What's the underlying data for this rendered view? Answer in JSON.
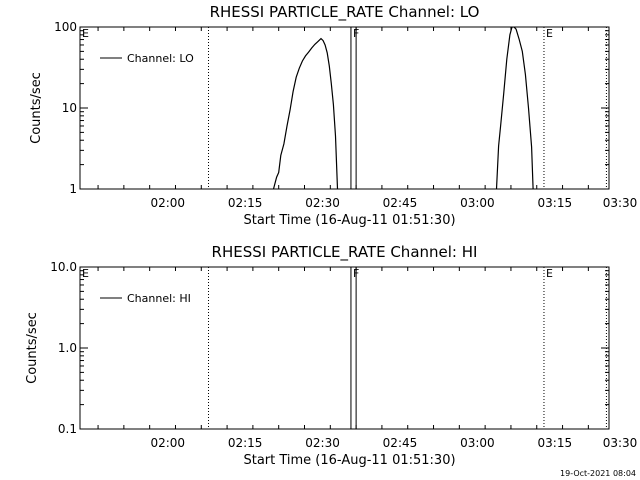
{
  "chart_data": [
    {
      "type": "line",
      "title": "RHESSI PARTICLE_RATE Channel: LO",
      "xlabel": "Start Time (16-Aug-11 01:51:30)",
      "ylabel": "Counts/sec",
      "yscale": "log",
      "ylim": [
        1,
        100
      ],
      "xlim_min": [
        -8.5,
        94
      ],
      "x_ticks": [
        {
          "min": 8.5,
          "label": "02:00"
        },
        {
          "min": 23.5,
          "label": "02:15"
        },
        {
          "min": 38.5,
          "label": "02:30"
        },
        {
          "min": 53.5,
          "label": "02:45"
        },
        {
          "min": 68.5,
          "label": "03:00"
        },
        {
          "min": 83.5,
          "label": "03:15"
        },
        {
          "min": 98.5,
          "label": "03:30"
        }
      ],
      "y_ticks": [
        {
          "value": 1,
          "label": "1"
        },
        {
          "value": 10,
          "label": "10"
        },
        {
          "value": 100,
          "label": "100"
        }
      ],
      "legend": {
        "label": "Channel: LO",
        "position": "top-left"
      },
      "grid": false,
      "event_markers": [
        {
          "min": -8.5,
          "label": "E",
          "style": "solid"
        },
        {
          "min": 16.4,
          "label": "",
          "style": "dotted"
        },
        {
          "min": 44.0,
          "label": "F",
          "style": "solid"
        },
        {
          "min": 45.0,
          "label": "",
          "style": "solid"
        },
        {
          "min": 81.4,
          "label": "E",
          "style": "dotted"
        },
        {
          "min": 93.5,
          "label": "",
          "style": "dotted"
        }
      ],
      "series": [
        {
          "segments": [
            [
              [
                29.0,
                1
              ],
              [
                29.6,
                1.4
              ],
              [
                30.0,
                1.6
              ],
              [
                30.4,
                2.6
              ],
              [
                31.0,
                3.6
              ],
              [
                31.6,
                6
              ],
              [
                32.2,
                9.5
              ],
              [
                32.8,
                16
              ],
              [
                33.4,
                24
              ],
              [
                34.0,
                31
              ],
              [
                34.6,
                38
              ],
              [
                35.2,
                44
              ],
              [
                35.8,
                49
              ],
              [
                36.4,
                55
              ],
              [
                37.0,
                61
              ],
              [
                37.6,
                66
              ],
              [
                38.2,
                72
              ],
              [
                38.6,
                68
              ],
              [
                39.0,
                60
              ],
              [
                39.4,
                48
              ],
              [
                39.8,
                33
              ],
              [
                40.2,
                20
              ],
              [
                40.6,
                11
              ],
              [
                41.0,
                4.5
              ],
              [
                41.4,
                1
              ]
            ],
            [
              [
                72.2,
                1
              ],
              [
                72.6,
                3.4
              ],
              [
                73.0,
                6
              ],
              [
                73.6,
                15
              ],
              [
                74.2,
                40
              ],
              [
                74.8,
                80
              ],
              [
                75.2,
                100
              ],
              [
                75.6,
                100
              ],
              [
                76.0,
                94
              ],
              [
                76.6,
                70
              ],
              [
                77.2,
                50
              ],
              [
                77.8,
                26
              ],
              [
                78.4,
                10
              ],
              [
                79.0,
                3.3
              ],
              [
                79.3,
                1
              ]
            ]
          ]
        }
      ]
    },
    {
      "type": "line",
      "title": "RHESSI PARTICLE_RATE Channel: HI",
      "xlabel": "Start Time (16-Aug-11 01:51:30)",
      "ylabel": "Counts/sec",
      "yscale": "log",
      "ylim": [
        0.1,
        10
      ],
      "xlim_min": [
        -8.5,
        94
      ],
      "x_ticks": [
        {
          "min": 8.5,
          "label": "02:00"
        },
        {
          "min": 23.5,
          "label": "02:15"
        },
        {
          "min": 38.5,
          "label": "02:30"
        },
        {
          "min": 53.5,
          "label": "02:45"
        },
        {
          "min": 68.5,
          "label": "03:00"
        },
        {
          "min": 83.5,
          "label": "03:15"
        },
        {
          "min": 98.5,
          "label": "03:30"
        }
      ],
      "y_ticks": [
        {
          "value": 0.1,
          "label": "0.1"
        },
        {
          "value": 1,
          "label": "1.0"
        },
        {
          "value": 10,
          "label": "10.0"
        }
      ],
      "legend": {
        "label": "Channel: HI",
        "position": "top-left"
      },
      "grid": false,
      "event_markers": [
        {
          "min": -8.5,
          "label": "E",
          "style": "solid"
        },
        {
          "min": 16.4,
          "label": "",
          "style": "dotted"
        },
        {
          "min": 44.0,
          "label": "F",
          "style": "solid"
        },
        {
          "min": 45.0,
          "label": "",
          "style": "solid"
        },
        {
          "min": 81.4,
          "label": "E",
          "style": "dotted"
        },
        {
          "min": 93.5,
          "label": "",
          "style": "dotted"
        }
      ],
      "series": [
        {
          "segments": []
        }
      ]
    }
  ],
  "footer": {
    "timestamp": "19-Oct-2021 08:04"
  }
}
